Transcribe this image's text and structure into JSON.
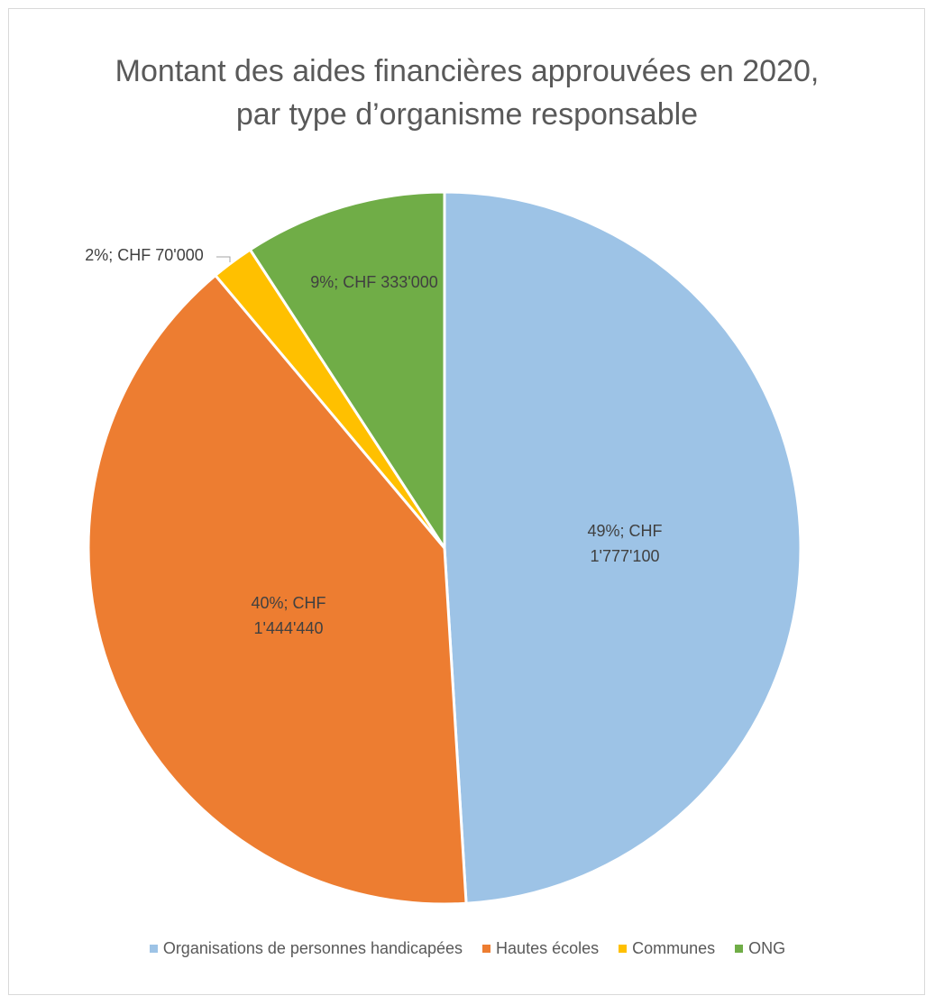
{
  "chart_data": {
    "type": "pie",
    "title": "Montant des aides financières approuvées en 2020, par type d’organisme responsable",
    "categories": [
      "Organisations de personnes handicapées",
      "Hautes écoles",
      "Communes",
      "ONG"
    ],
    "values": [
      1777100,
      1444440,
      70000,
      333000
    ],
    "value_labels": [
      "49%; CHF 1'777'100",
      "40%; CHF 1'444'440",
      "2%; CHF 70'000",
      "9%; CHF 333'000"
    ],
    "colors": [
      "#9dc3e6",
      "#ed7d31",
      "#ffc000",
      "#70ad47"
    ],
    "legend": "bottom"
  }
}
